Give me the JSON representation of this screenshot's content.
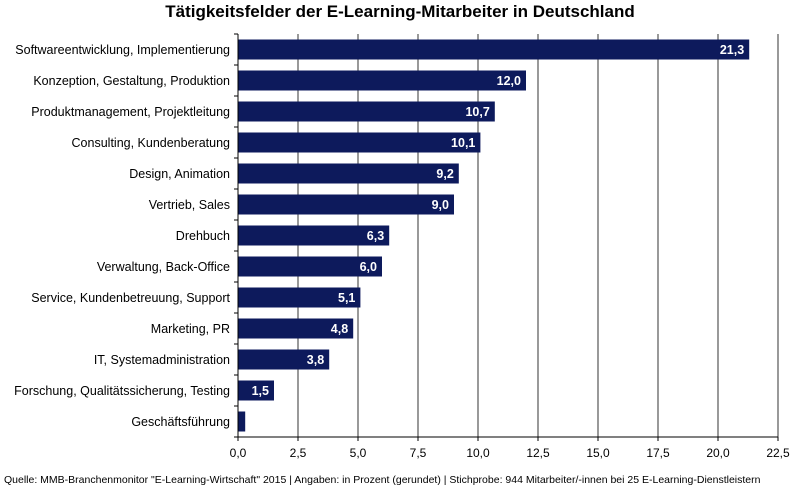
{
  "chart_data": {
    "type": "bar",
    "orientation": "horizontal",
    "title": "Tätigkeitsfelder der E-Learning-Mitarbeiter  in Deutschland",
    "xlabel": "",
    "ylabel": "",
    "xlim": [
      0,
      22.5
    ],
    "x_ticks": [
      "0,0",
      "2,5",
      "5,0",
      "7,5",
      "10,0",
      "12,5",
      "15,0",
      "17,5",
      "20,0",
      "22,5"
    ],
    "grid": true,
    "bar_color": "#0d1a5c",
    "categories": [
      "Softwareentwicklung, Implementierung",
      "Konzeption, Gestaltung, Produktion",
      "Produktmanagement, Projektleitung",
      "Consulting, Kundenberatung",
      "Design, Animation",
      "Vertrieb, Sales",
      "Drehbuch",
      "Verwaltung, Back-Office",
      "Service, Kundenbetreuung, Support",
      "Marketing, PR",
      "IT, Systemadministration",
      "Forschung, Qualitätssicherung, Testing",
      "Geschäftsführung"
    ],
    "values": [
      21.3,
      12.0,
      10.7,
      10.1,
      9.2,
      9.0,
      6.3,
      6.0,
      5.1,
      4.8,
      3.8,
      1.5,
      0.3
    ],
    "value_labels": [
      "21,3",
      "12,0",
      "10,7",
      "10,1",
      "9,2",
      "9,0",
      "6,3",
      "6,0",
      "5,1",
      "4,8",
      "3,8",
      "1,5",
      ""
    ]
  },
  "source_note": "Quelle: MMB-Branchenmonitor \"E-Learning-Wirtschaft\" 2015 | Angaben: in Prozent (gerundet) | Stichprobe: 944 Mitarbeiter/-innen bei 25 E-Learning-Dienstleistern"
}
